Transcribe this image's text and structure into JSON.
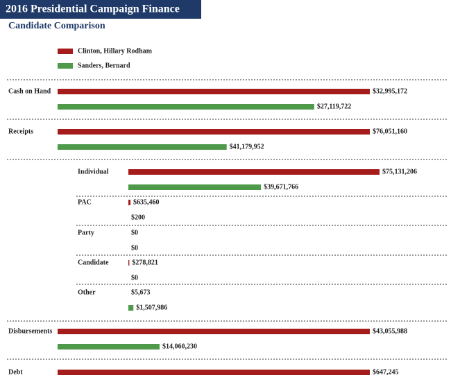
{
  "chart_data": {
    "type": "bar",
    "title": "2016 Presidential Campaign Finance",
    "subtitle": "Candidate Comparison",
    "categories": [
      "Cash on Hand",
      "Receipts",
      "Disbursements",
      "Debt"
    ],
    "series": [
      {
        "name": "Clinton, Hillary Rodham",
        "color": "#a51c1c",
        "values": [
          32995172,
          76051160,
          43055988,
          647245
        ],
        "value_labels": [
          "$32,995,172",
          "$76,051,160",
          "$43,055,988",
          "$647,245"
        ]
      },
      {
        "name": "Sanders, Bernard",
        "color": "#4e9a4a",
        "values": [
          27119722,
          41179952,
          14060230,
          null
        ],
        "value_labels": [
          "$27,119,722",
          "$41,179,952",
          "$14,060,230",
          null
        ]
      }
    ],
    "breakdown": {
      "categories": [
        "Individual",
        "PAC",
        "Party",
        "Candidate",
        "Other"
      ],
      "series": [
        {
          "values": [
            75131206,
            635460,
            0,
            278821,
            5673
          ],
          "value_labels": [
            "$75,131,206",
            "$635,460",
            "$0",
            "$278,821",
            "$5,673"
          ]
        },
        {
          "values": [
            39671766,
            200,
            0,
            0,
            1507986
          ],
          "value_labels": [
            "$39,671,766",
            "$200",
            "$0",
            "$0",
            "$1,507,986"
          ]
        }
      ]
    }
  }
}
